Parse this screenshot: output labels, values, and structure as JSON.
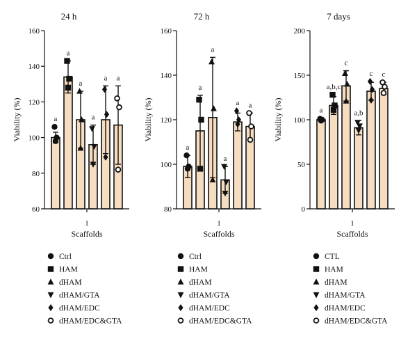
{
  "chart_data": [
    {
      "type": "bar",
      "title": "24 h",
      "xlabel": "Scaffolds",
      "ylabel": "Viability (%)",
      "category_label": "1",
      "ylim": [
        60,
        160
      ],
      "yticks": [
        "60",
        "80",
        "100",
        "120",
        "140",
        "160"
      ],
      "bar_color": "#f6dcc0",
      "series": [
        {
          "name": "Ctrl",
          "marker": "circle",
          "mean": 100,
          "sd": 3,
          "points": [
            106,
            100,
            98
          ],
          "letter": "a"
        },
        {
          "name": "HAM",
          "marker": "square",
          "mean": 134,
          "sd": 9,
          "points": [
            143,
            133,
            128
          ],
          "letter": "a"
        },
        {
          "name": "dHAM",
          "marker": "triangle-up",
          "mean": 110,
          "sd": 16,
          "points": [
            126,
            110,
            94
          ],
          "letter": "a"
        },
        {
          "name": "dHAM/GTA",
          "marker": "triangle-down",
          "mean": 96,
          "sd": 11,
          "points": [
            105,
            95,
            85
          ],
          "letter": "a"
        },
        {
          "name": "dHAM/EDC",
          "marker": "diamond",
          "mean": 110,
          "sd": 19,
          "points": [
            127,
            113,
            89
          ],
          "letter": "a"
        },
        {
          "name": "dHAM/EDC&GTA",
          "marker": "circle-open",
          "mean": 107,
          "sd": 22,
          "points": [
            122,
            117,
            82
          ],
          "letter": "a"
        }
      ]
    },
    {
      "type": "bar",
      "title": "72 h",
      "xlabel": "Scaffolds",
      "ylabel": "Viability (%)",
      "category_label": "1",
      "ylim": [
        80,
        160
      ],
      "yticks": [
        "80",
        "100",
        "120",
        "140",
        "160"
      ],
      "bar_color": "#f6dcc0",
      "series": [
        {
          "name": "Ctrl",
          "marker": "circle",
          "mean": 99,
          "sd": 5,
          "points": [
            104,
            99,
            98
          ],
          "letter": "a"
        },
        {
          "name": "HAM",
          "marker": "square",
          "mean": 115,
          "sd": 16,
          "points": [
            129,
            120,
            98
          ],
          "letter": "a"
        },
        {
          "name": "dHAM",
          "marker": "triangle-up",
          "mean": 121,
          "sd": 27,
          "points": [
            146,
            125,
            93
          ],
          "letter": "a"
        },
        {
          "name": "dHAM/GTA",
          "marker": "triangle-down",
          "mean": 93,
          "sd": 6,
          "points": [
            99,
            92,
            87
          ],
          "letter": "a"
        },
        {
          "name": "dHAM/EDC",
          "marker": "diamond",
          "mean": 119,
          "sd": 4,
          "points": [
            124,
            120,
            118
          ],
          "letter": "a"
        },
        {
          "name": "dHAM/EDC&GTA",
          "marker": "circle-open",
          "mean": 117,
          "sd": 6,
          "points": [
            123,
            117,
            111
          ],
          "letter": "a"
        }
      ]
    },
    {
      "type": "bar",
      "title": "7 days",
      "xlabel": "Scaffolds",
      "ylabel": "Viability (%)",
      "category_label": "1",
      "ylim": [
        0,
        200
      ],
      "yticks": [
        "0",
        "50",
        "100",
        "150",
        "200"
      ],
      "bar_color": "#f6dcc0",
      "series": [
        {
          "name": "CTL",
          "marker": "circle",
          "mean": 100,
          "sd": 2,
          "points": [
            101,
            100,
            99
          ],
          "letter": "a"
        },
        {
          "name": "HAM",
          "marker": "square",
          "mean": 116,
          "sd": 10,
          "points": [
            128,
            116,
            111
          ],
          "letter": "a,b,c"
        },
        {
          "name": "dHAM",
          "marker": "triangle-up",
          "mean": 138,
          "sd": 17,
          "points": [
            152,
            140,
            121
          ],
          "letter": "c"
        },
        {
          "name": "dHAM/GTA",
          "marker": "triangle-down",
          "mean": 91,
          "sd": 8,
          "points": [
            97,
            93,
            88
          ],
          "letter": "a,b"
        },
        {
          "name": "dHAM/EDC",
          "marker": "diamond",
          "mean": 132,
          "sd": 10,
          "points": [
            143,
            134,
            122
          ],
          "letter": "c"
        },
        {
          "name": "dHAM/EDC&GTA",
          "marker": "circle-open",
          "mean": 135,
          "sd": 7,
          "points": [
            142,
            137,
            130
          ],
          "letter": "c"
        }
      ]
    }
  ]
}
